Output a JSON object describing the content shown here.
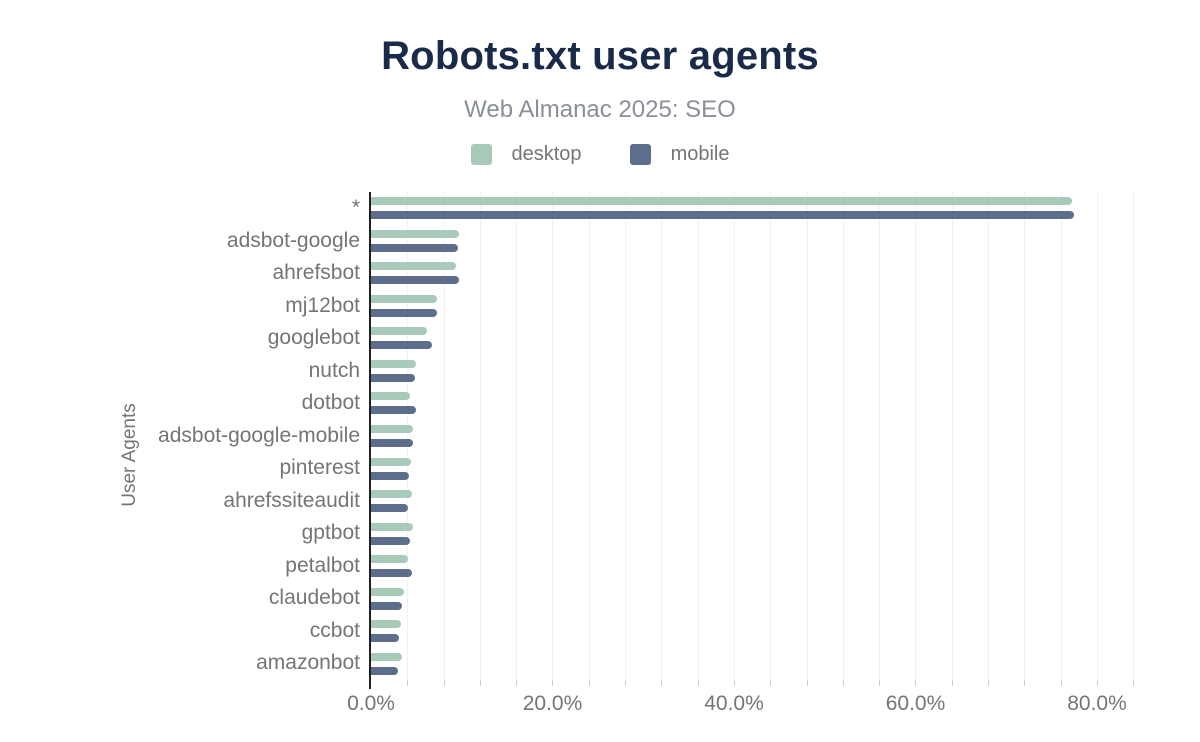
{
  "header": {
    "title": "Robots.txt user agents",
    "subtitle": "Web Almanac 2025: SEO"
  },
  "colors": {
    "title": "#1a2b49",
    "subtitle": "#8a8f99",
    "axis_text": "#757575",
    "axis_line": "#212121",
    "gridline": "#f2f2f2",
    "tick": "#cccccc",
    "background": "#ffffff",
    "desktop": "#a8cab8",
    "mobile": "#5c6e8c"
  },
  "chart_data": {
    "type": "bar",
    "orientation": "horizontal",
    "title": "Robots.txt user agents",
    "subtitle": "Web Almanac 2025: SEO",
    "xlabel": "",
    "ylabel": "User Agents",
    "legend_position": "top",
    "grid": {
      "axis": "x",
      "minor_step": 4,
      "max_line": 84,
      "on": true
    },
    "xlim": [
      0,
      85.4
    ],
    "x_ticks": [
      {
        "value": 0,
        "label": "0.0%"
      },
      {
        "value": 20,
        "label": "20.0%"
      },
      {
        "value": 40,
        "label": "40.0%"
      },
      {
        "value": 60,
        "label": "60.0%"
      },
      {
        "value": 80,
        "label": "80.0%"
      }
    ],
    "categories": [
      "*",
      "adsbot-google",
      "ahrefsbot",
      "mj12bot",
      "googlebot",
      "nutch",
      "dotbot",
      "adsbot-google-mobile",
      "pinterest",
      "ahrefssiteaudit",
      "gptbot",
      "petalbot",
      "claudebot",
      "ccbot",
      "amazonbot"
    ],
    "series": [
      {
        "name": "desktop",
        "color": "#a8cab8",
        "values": [
          77.2,
          9.7,
          9.4,
          7.3,
          6.2,
          5.0,
          4.3,
          4.6,
          4.4,
          4.5,
          4.6,
          4.1,
          3.6,
          3.3,
          3.4
        ]
      },
      {
        "name": "mobile",
        "color": "#5c6e8c",
        "values": [
          77.5,
          9.6,
          9.7,
          7.3,
          6.7,
          4.8,
          5.0,
          4.6,
          4.2,
          4.1,
          4.3,
          4.5,
          3.4,
          3.1,
          3.0
        ]
      }
    ]
  }
}
